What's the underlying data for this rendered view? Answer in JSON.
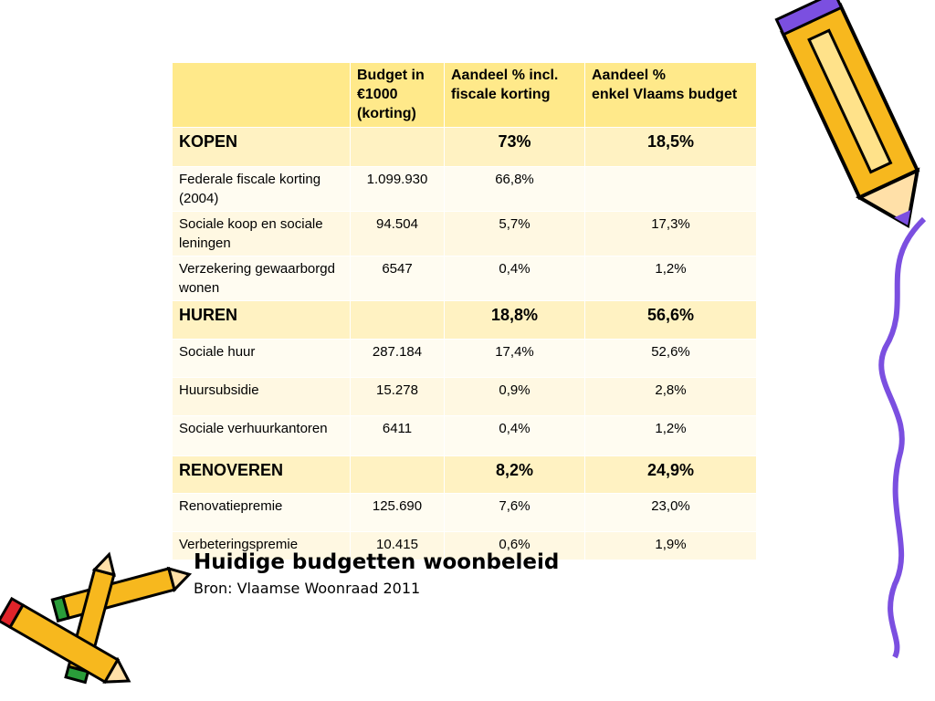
{
  "table": {
    "header": [
      null,
      [
        "Budget in",
        "€1000",
        "(korting)"
      ],
      [
        "Aandeel % incl.",
        "fiscale korting"
      ],
      [
        "Aandeel %",
        "enkel Vlaams budget"
      ]
    ],
    "rows": [
      [
        "KOPEN",
        null,
        "73%",
        "18,5%"
      ],
      [
        "Federale fiscale korting (2004)",
        "1.099.930",
        "66,8%",
        null
      ],
      [
        "Sociale koop en sociale leningen",
        "94.504",
        "5,7%",
        "17,3%"
      ],
      [
        "Verzekering gewaarborgd wonen",
        "6547",
        "0,4%",
        "1,2%"
      ],
      [
        "HUREN",
        null,
        "18,8%",
        "56,6%"
      ],
      [
        "Sociale huur",
        "287.184",
        "17,4%",
        "52,6%"
      ],
      [
        "Huursubsidie",
        "15.278",
        "0,9%",
        "2,8%"
      ],
      [
        "Sociale verhuurkantoren",
        "6411",
        "0,4%",
        "1,2%"
      ],
      [
        "RENOVEREN",
        null,
        "8,2%",
        "24,9%"
      ],
      [
        "Renovatiepremie",
        "125.690",
        "7,6%",
        "23,0%"
      ],
      [
        "Verbeteringspremie",
        "10.415",
        "0,6%",
        "1,9%"
      ]
    ]
  },
  "caption": {
    "title": "Huidige budgetten woonbeleid",
    "source": "Bron: Vlaamse Woonraad 2011"
  }
}
